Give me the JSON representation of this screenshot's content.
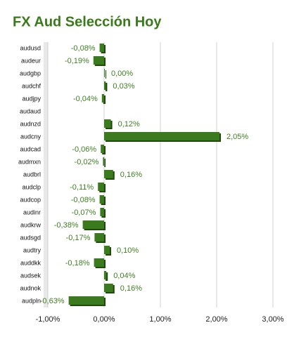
{
  "chart_data": {
    "type": "bar",
    "orientation": "horizontal",
    "title": "FX Aud Selección Hoy",
    "categories": [
      "audusd",
      "audeur",
      "audgbp",
      "audchf",
      "audjpy",
      "audaud",
      "audnzd",
      "audcny",
      "audcad",
      "audmxn",
      "audbrl",
      "audclp",
      "audcop",
      "audinr",
      "audkrw",
      "audsgd",
      "audtry",
      "auddkk",
      "audsek",
      "audnok",
      "audpln"
    ],
    "values": [
      -0.08,
      -0.19,
      0.0,
      0.03,
      -0.04,
      null,
      0.12,
      2.05,
      -0.06,
      -0.02,
      0.16,
      -0.11,
      -0.08,
      -0.07,
      -0.38,
      -0.17,
      0.1,
      -0.18,
      0.04,
      0.16,
      -0.63
    ],
    "value_labels": [
      "-0,08%",
      "-0,19%",
      "0,00%",
      "0,03%",
      "-0,04%",
      null,
      "0,12%",
      "2,05%",
      "-0,06%",
      "-0,02%",
      "0,16%",
      "-0,11%",
      "-0,08%",
      "-0,07%",
      "-0,38%",
      "-0,17%",
      "0,10%",
      "-0,18%",
      "0,04%",
      "0,16%",
      "-0,63%"
    ],
    "color": "#3b7a1f",
    "xlim": [
      -1,
      3
    ],
    "xticks": [
      {
        "value": -1,
        "label": "-1,00%"
      },
      {
        "value": 0,
        "label": "0,00%"
      },
      {
        "value": 1,
        "label": "1,00%"
      },
      {
        "value": 2,
        "label": "2,00%"
      },
      {
        "value": 3,
        "label": "3,00%"
      }
    ],
    "grid": true
  }
}
